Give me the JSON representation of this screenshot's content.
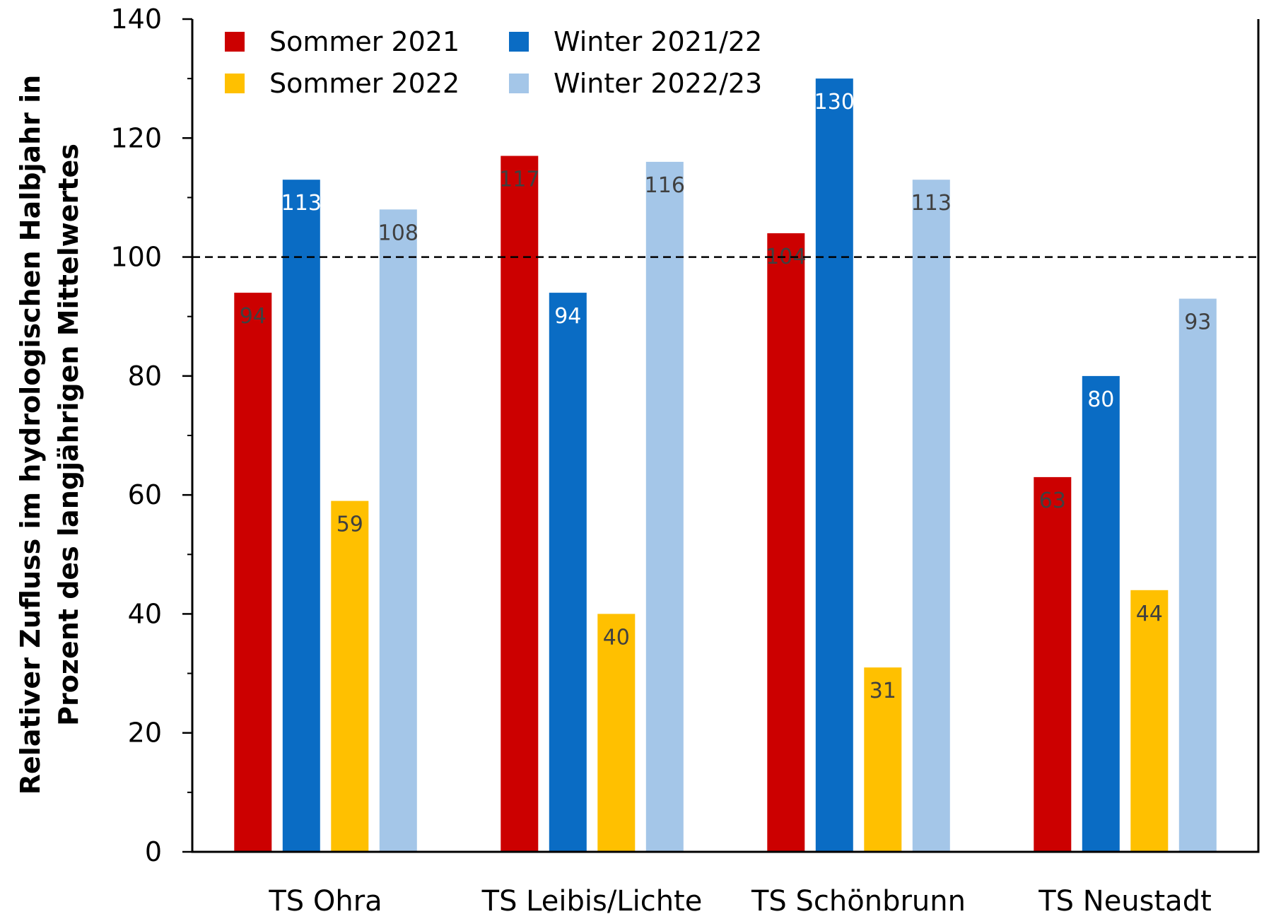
{
  "chart_data": {
    "type": "bar",
    "title": "",
    "xlabel": "",
    "ylabel_lines": [
      "Relativer Zufluss im hydrologischen Halbjahr in",
      "Prozent des langjährigen Mittelwertes"
    ],
    "ylim": [
      0,
      140
    ],
    "yticks": [
      0,
      20,
      40,
      60,
      80,
      100,
      120,
      140
    ],
    "reference_line": 100,
    "categories": [
      "TS Ohra",
      "TS Leibis/Lichte",
      "TS Schönbrunn",
      "TS Neustadt"
    ],
    "series": [
      {
        "name": "Sommer 2021",
        "color": "#cc0000",
        "label_color": "#404040",
        "values": [
          94,
          117,
          104,
          63
        ]
      },
      {
        "name": "Winter 2021/22",
        "color": "#0a6cc4",
        "label_color": "#ffffff",
        "values": [
          113,
          94,
          130,
          80
        ]
      },
      {
        "name": "Sommer 2022",
        "color": "#ffc000",
        "label_color": "#404040",
        "values": [
          59,
          40,
          31,
          44
        ]
      },
      {
        "name": "Winter 2022/23",
        "color": "#a4c6e8",
        "label_color": "#404040",
        "values": [
          108,
          116,
          113,
          93
        ]
      }
    ],
    "legend_position": "top-left",
    "grid": false
  }
}
